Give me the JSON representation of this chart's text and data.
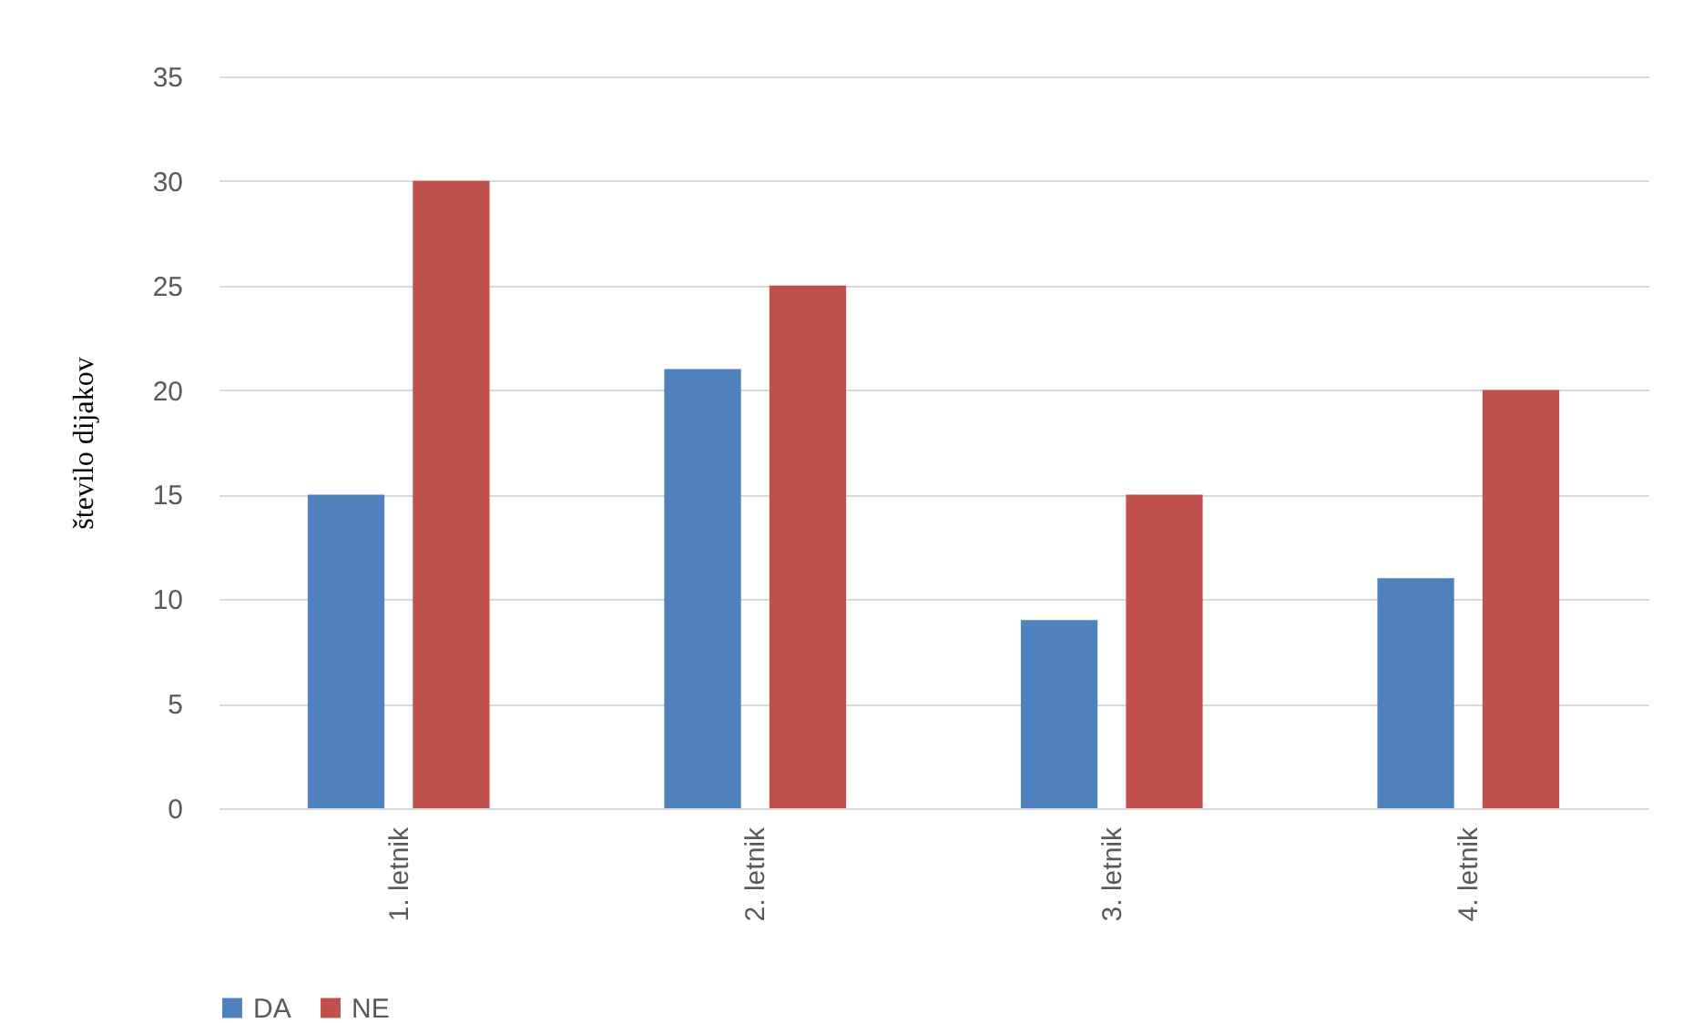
{
  "chart_data": {
    "type": "bar",
    "ylabel": "število dijakov",
    "categories": [
      "1. letnik",
      "2. letnik",
      "3. letnik",
      "4. letnik"
    ],
    "series": [
      {
        "name": "DA",
        "color": "#4f81bd",
        "values": [
          15,
          21,
          9,
          11
        ]
      },
      {
        "name": "NE",
        "color": "#c0504d",
        "values": [
          30,
          25,
          15,
          20
        ]
      }
    ],
    "ylim": [
      0,
      35
    ],
    "yticks": [
      0,
      5,
      10,
      15,
      20,
      25,
      30,
      35
    ],
    "grid": "y",
    "legend": "bottom"
  }
}
